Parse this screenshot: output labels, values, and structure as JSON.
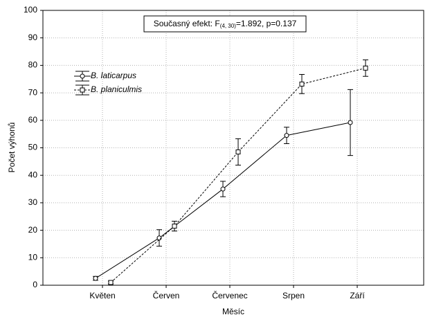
{
  "chart_data": {
    "type": "line",
    "annotation": {
      "prefix": "Současný efekt: F",
      "subscript": "(4, 30)",
      "suffix": "=1.892, p=0.137"
    },
    "xlabel": "Měsíc",
    "ylabel": "Počet výhonů",
    "categories": [
      "Květen",
      "Červen",
      "Červenec",
      "Srpen",
      "Září"
    ],
    "series": [
      {
        "name": "B. laticarpus",
        "color": "#000000",
        "marker": "circle",
        "linestyle": "solid",
        "values": [
          2.5,
          17.2,
          35,
          54.5,
          59.2
        ],
        "errors": [
          0.7,
          3,
          2.8,
          3,
          12
        ]
      },
      {
        "name": "B. planiculmis",
        "color": "#000000",
        "marker": "square",
        "linestyle": "dashed",
        "values": [
          1,
          21.5,
          48.5,
          73.2,
          79
        ],
        "errors": [
          0.5,
          1.8,
          4.8,
          3.5,
          3
        ]
      }
    ],
    "ylim": [
      0,
      100
    ],
    "yticks": [
      0,
      10,
      20,
      30,
      40,
      50,
      60,
      70,
      80,
      90,
      100
    ],
    "grid": true,
    "legend": "upper left"
  }
}
